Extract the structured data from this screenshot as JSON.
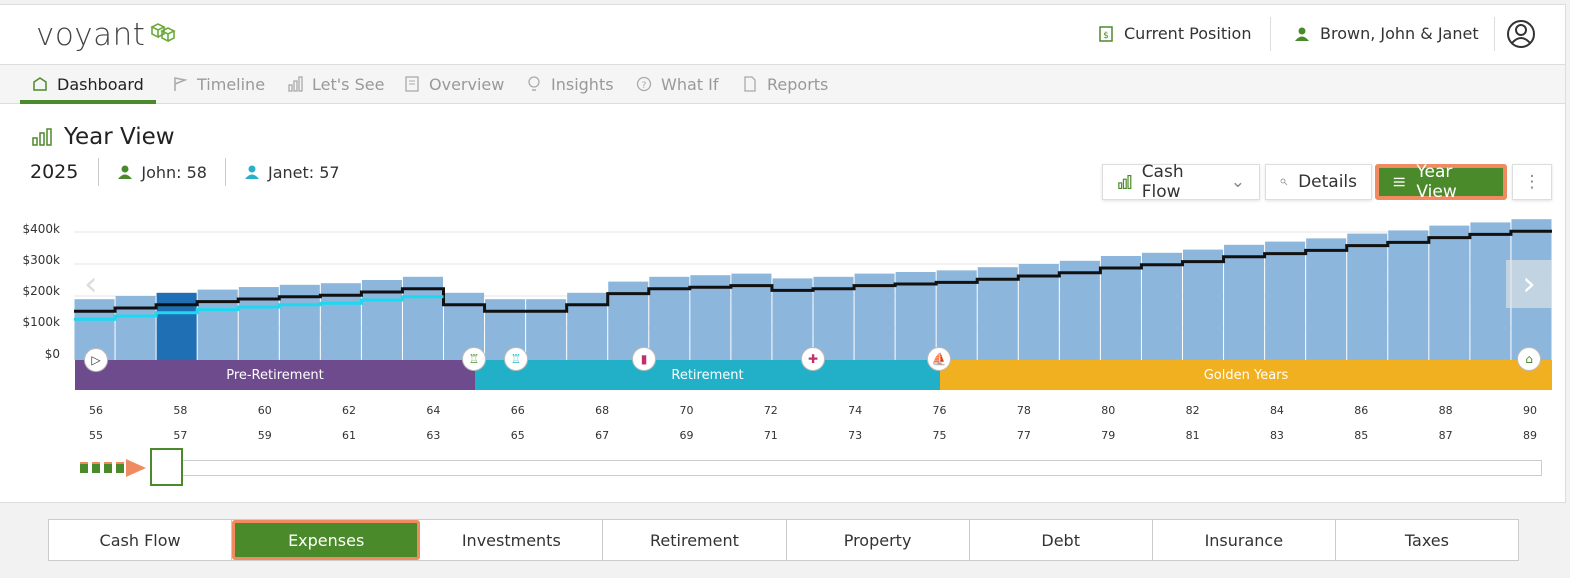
{
  "brand": {
    "name": "voyant",
    "color": "#4b8a2a"
  },
  "header": {
    "current_position": "Current Position",
    "client_name": "Brown, John & Janet"
  },
  "nav": {
    "tabs": [
      {
        "label": "Dashboard",
        "icon": "home-icon",
        "active": true
      },
      {
        "label": "Timeline",
        "icon": "flag-icon"
      },
      {
        "label": "Let's See",
        "icon": "bar-chart-icon"
      },
      {
        "label": "Overview",
        "icon": "document-icon"
      },
      {
        "label": "Insights",
        "icon": "lightbulb-icon"
      },
      {
        "label": "What If",
        "icon": "question-icon"
      },
      {
        "label": "Reports",
        "icon": "pdf-icon"
      }
    ]
  },
  "view": {
    "title": "Year View",
    "year": "2025",
    "people": [
      {
        "label": "John: 58",
        "color": "#4b8a2a"
      },
      {
        "label": "Janet: 57",
        "color": "#2ab0c8"
      }
    ]
  },
  "toolbar": {
    "cash_flow_label": "Cash Flow",
    "details_label": "Details",
    "year_view_label": "Year View",
    "more_label": "⋮"
  },
  "chart_data": {
    "type": "bar",
    "ylabels": [
      "$400k",
      "$300k",
      "$200k",
      "$100k",
      "$0"
    ],
    "ylim": [
      0,
      400000
    ],
    "bars": [
      190000,
      200000,
      210000,
      220000,
      228000,
      235000,
      240000,
      250000,
      260000,
      210000,
      190000,
      190000,
      210000,
      245000,
      260000,
      265000,
      270000,
      255000,
      260000,
      270000,
      275000,
      280000,
      290000,
      300000,
      310000,
      325000,
      335000,
      345000,
      360000,
      370000,
      380000,
      395000,
      405000,
      420000,
      430000,
      440000
    ],
    "selected_index": 2,
    "phases": [
      {
        "label": "Pre-Retirement",
        "color": "#6e4b8c"
      },
      {
        "label": "Retirement",
        "color": "#22b0c8"
      },
      {
        "label": "Golden Years",
        "color": "#f0b020"
      }
    ],
    "ages_john": [
      "56",
      "58",
      "60",
      "62",
      "64",
      "66",
      "68",
      "70",
      "72",
      "74",
      "76",
      "78",
      "80",
      "82",
      "84",
      "86",
      "88",
      "90"
    ],
    "ages_janet": [
      "55",
      "57",
      "59",
      "61",
      "63",
      "65",
      "67",
      "69",
      "71",
      "73",
      "75",
      "77",
      "79",
      "81",
      "83",
      "85",
      "87",
      "89"
    ]
  },
  "categories": [
    {
      "label": "Cash Flow"
    },
    {
      "label": "Expenses",
      "active": true
    },
    {
      "label": "Investments"
    },
    {
      "label": "Retirement"
    },
    {
      "label": "Property"
    },
    {
      "label": "Debt"
    },
    {
      "label": "Insurance"
    },
    {
      "label": "Taxes"
    }
  ]
}
